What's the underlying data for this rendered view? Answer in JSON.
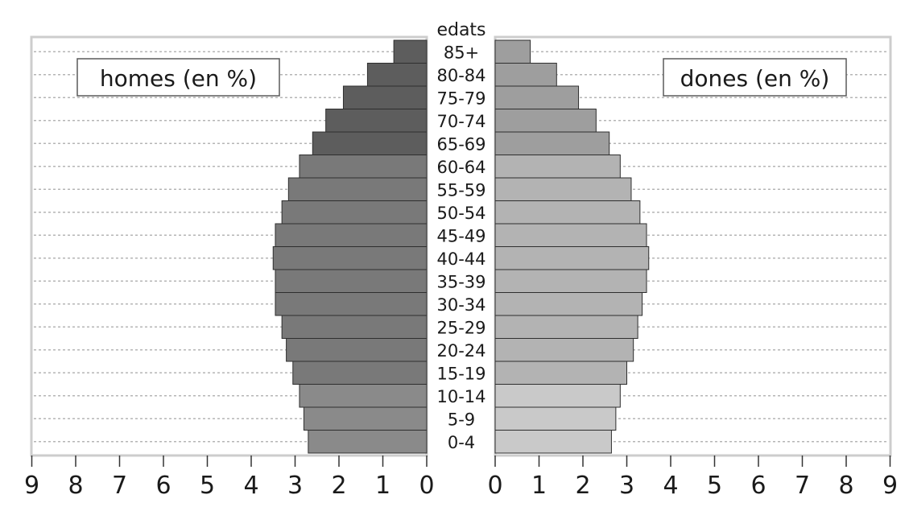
{
  "chart_data": {
    "type": "bar",
    "subtype": "population-pyramid",
    "age_label": "edats",
    "categories": [
      "0-4",
      "5-9",
      "10-14",
      "15-19",
      "20-24",
      "25-29",
      "30-34",
      "35-39",
      "40-44",
      "45-49",
      "50-54",
      "55-59",
      "60-64",
      "65-69",
      "70-74",
      "75-79",
      "80-84",
      "85+"
    ],
    "series": [
      {
        "name": "homes (en %)",
        "side": "left",
        "values": [
          2.7,
          2.8,
          2.9,
          3.05,
          3.2,
          3.3,
          3.45,
          3.45,
          3.5,
          3.45,
          3.3,
          3.15,
          2.9,
          2.6,
          2.3,
          1.9,
          1.35,
          0.75
        ]
      },
      {
        "name": "dones (en %)",
        "side": "right",
        "values": [
          2.65,
          2.75,
          2.85,
          3.0,
          3.15,
          3.25,
          3.35,
          3.45,
          3.5,
          3.45,
          3.3,
          3.1,
          2.85,
          2.6,
          2.3,
          1.9,
          1.4,
          0.8
        ]
      }
    ],
    "xlim": [
      0,
      9
    ],
    "xticks": [
      "0",
      "1",
      "2",
      "3",
      "4",
      "5",
      "6",
      "7",
      "8",
      "9"
    ],
    "grid": true,
    "legend_placement": "top",
    "colors": {
      "men_old": "#5d5d5d",
      "men_mid": "#797979",
      "men_young": "#8a8a8a",
      "women_old": "#9e9e9e",
      "women_mid": "#b3b3b3",
      "women_young": "#c9c9c9",
      "bar_stroke": "#2e2e2e",
      "grid": "#b5b5b5",
      "panel_border": "#cdcdcd"
    }
  }
}
